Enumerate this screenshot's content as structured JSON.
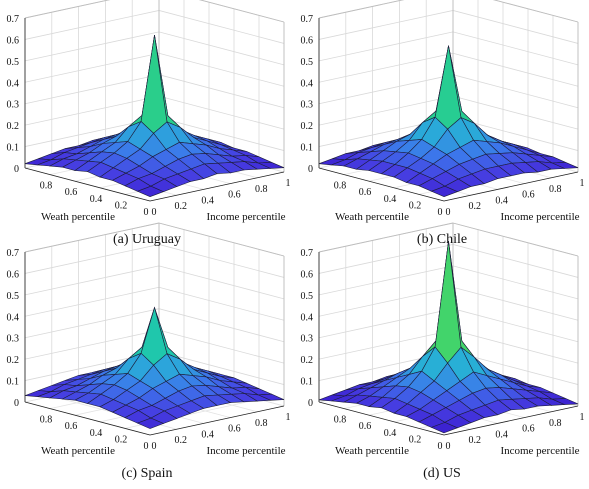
{
  "chart_data": [
    {
      "type": "surface3d",
      "caption": "(a) Uruguay",
      "xlabel": "Income percentile",
      "ylabel": "Weath percentile",
      "xticks": [
        "0",
        "0.2",
        "0.4",
        "0.6",
        "0.8",
        "1"
      ],
      "yticks": [
        "0",
        "0.2",
        "0.4",
        "0.6",
        "0.8"
      ],
      "zticks": [
        "0",
        "0.1",
        "0.2",
        "0.3",
        "0.4",
        "0.5",
        "0.6",
        "0.7"
      ],
      "zlim": [
        0,
        0.7
      ],
      "grid": true,
      "peak": 0.63,
      "z": [
        [
          0.02,
          0.03,
          0.04,
          0.05,
          0.05,
          0.06,
          0.05,
          0.05,
          0.04,
          0.03,
          0.02
        ],
        [
          0.03,
          0.04,
          0.06,
          0.07,
          0.08,
          0.09,
          0.08,
          0.07,
          0.06,
          0.04,
          0.03
        ],
        [
          0.04,
          0.06,
          0.07,
          0.09,
          0.11,
          0.12,
          0.11,
          0.09,
          0.07,
          0.06,
          0.04
        ],
        [
          0.05,
          0.07,
          0.09,
          0.12,
          0.14,
          0.16,
          0.14,
          0.12,
          0.09,
          0.07,
          0.05
        ],
        [
          0.05,
          0.08,
          0.11,
          0.14,
          0.2,
          0.24,
          0.2,
          0.14,
          0.11,
          0.08,
          0.05
        ],
        [
          0.06,
          0.09,
          0.12,
          0.16,
          0.24,
          0.63,
          0.24,
          0.16,
          0.12,
          0.09,
          0.06
        ],
        [
          0.05,
          0.08,
          0.11,
          0.14,
          0.2,
          0.24,
          0.2,
          0.14,
          0.11,
          0.08,
          0.05
        ],
        [
          0.05,
          0.07,
          0.09,
          0.12,
          0.14,
          0.16,
          0.14,
          0.12,
          0.09,
          0.07,
          0.05
        ],
        [
          0.04,
          0.06,
          0.07,
          0.09,
          0.11,
          0.12,
          0.11,
          0.09,
          0.07,
          0.06,
          0.04
        ],
        [
          0.03,
          0.04,
          0.06,
          0.07,
          0.08,
          0.09,
          0.08,
          0.07,
          0.06,
          0.04,
          0.03
        ],
        [
          0.02,
          0.03,
          0.04,
          0.05,
          0.05,
          0.06,
          0.05,
          0.05,
          0.04,
          0.03,
          0.02
        ]
      ]
    },
    {
      "type": "surface3d",
      "caption": "(b) Chile",
      "xlabel": "Income percentile",
      "ylabel": "Weath percentile",
      "xticks": [
        "0",
        "0.2",
        "0.4",
        "0.6",
        "0.8",
        "1"
      ],
      "yticks": [
        "0",
        "0.2",
        "0.4",
        "0.6",
        "0.8"
      ],
      "zticks": [
        "0",
        "0.1",
        "0.2",
        "0.3",
        "0.4",
        "0.5",
        "0.6",
        "0.7"
      ],
      "zlim": [
        0,
        0.7
      ],
      "grid": true,
      "peak": 0.58,
      "z": [
        [
          0.02,
          0.03,
          0.04,
          0.04,
          0.05,
          0.05,
          0.05,
          0.04,
          0.04,
          0.03,
          0.02
        ],
        [
          0.03,
          0.04,
          0.06,
          0.07,
          0.08,
          0.08,
          0.08,
          0.07,
          0.06,
          0.04,
          0.03
        ],
        [
          0.04,
          0.06,
          0.08,
          0.1,
          0.11,
          0.12,
          0.11,
          0.1,
          0.08,
          0.06,
          0.04
        ],
        [
          0.04,
          0.07,
          0.1,
          0.13,
          0.15,
          0.17,
          0.15,
          0.13,
          0.1,
          0.07,
          0.04
        ],
        [
          0.05,
          0.08,
          0.11,
          0.15,
          0.22,
          0.26,
          0.22,
          0.15,
          0.11,
          0.08,
          0.05
        ],
        [
          0.05,
          0.08,
          0.12,
          0.17,
          0.26,
          0.58,
          0.26,
          0.17,
          0.12,
          0.08,
          0.05
        ],
        [
          0.05,
          0.08,
          0.11,
          0.15,
          0.22,
          0.26,
          0.22,
          0.15,
          0.11,
          0.08,
          0.05
        ],
        [
          0.04,
          0.07,
          0.1,
          0.13,
          0.15,
          0.17,
          0.15,
          0.13,
          0.1,
          0.07,
          0.04
        ],
        [
          0.04,
          0.06,
          0.08,
          0.1,
          0.11,
          0.12,
          0.11,
          0.1,
          0.08,
          0.06,
          0.04
        ],
        [
          0.03,
          0.04,
          0.06,
          0.07,
          0.08,
          0.08,
          0.08,
          0.07,
          0.06,
          0.04,
          0.03
        ],
        [
          0.02,
          0.03,
          0.04,
          0.04,
          0.05,
          0.05,
          0.05,
          0.04,
          0.04,
          0.03,
          0.02
        ]
      ]
    },
    {
      "type": "surface3d",
      "caption": "(c) Spain",
      "xlabel": "Income percentile",
      "ylabel": "Weath percentile",
      "xticks": [
        "0",
        "0.2",
        "0.4",
        "0.6",
        "0.8",
        "1"
      ],
      "yticks": [
        "0",
        "0.2",
        "0.4",
        "0.6",
        "0.8"
      ],
      "zticks": [
        "0",
        "0.1",
        "0.2",
        "0.3",
        "0.4",
        "0.5",
        "0.6",
        "0.7"
      ],
      "zlim": [
        0,
        0.7
      ],
      "grid": true,
      "peak": 0.45,
      "z": [
        [
          0.03,
          0.04,
          0.05,
          0.06,
          0.07,
          0.07,
          0.07,
          0.06,
          0.05,
          0.04,
          0.03
        ],
        [
          0.04,
          0.05,
          0.07,
          0.08,
          0.09,
          0.1,
          0.09,
          0.08,
          0.07,
          0.05,
          0.04
        ],
        [
          0.05,
          0.07,
          0.08,
          0.1,
          0.12,
          0.13,
          0.12,
          0.1,
          0.08,
          0.07,
          0.05
        ],
        [
          0.06,
          0.08,
          0.1,
          0.13,
          0.15,
          0.17,
          0.15,
          0.13,
          0.1,
          0.08,
          0.06
        ],
        [
          0.07,
          0.09,
          0.12,
          0.15,
          0.21,
          0.25,
          0.21,
          0.15,
          0.12,
          0.09,
          0.07
        ],
        [
          0.07,
          0.1,
          0.13,
          0.17,
          0.25,
          0.45,
          0.25,
          0.17,
          0.13,
          0.1,
          0.07
        ],
        [
          0.07,
          0.09,
          0.12,
          0.15,
          0.21,
          0.25,
          0.21,
          0.15,
          0.12,
          0.09,
          0.07
        ],
        [
          0.06,
          0.08,
          0.1,
          0.13,
          0.15,
          0.17,
          0.15,
          0.13,
          0.1,
          0.08,
          0.06
        ],
        [
          0.05,
          0.07,
          0.08,
          0.1,
          0.12,
          0.13,
          0.12,
          0.1,
          0.08,
          0.07,
          0.05
        ],
        [
          0.04,
          0.05,
          0.07,
          0.08,
          0.09,
          0.1,
          0.09,
          0.08,
          0.07,
          0.05,
          0.04
        ],
        [
          0.03,
          0.04,
          0.05,
          0.06,
          0.07,
          0.07,
          0.07,
          0.06,
          0.05,
          0.04,
          0.03
        ]
      ]
    },
    {
      "type": "surface3d",
      "caption": "(d) US",
      "xlabel": "Income percentile",
      "ylabel": "Weath percentile",
      "xticks": [
        "0",
        "0.2",
        "0.4",
        "0.6",
        "0.8",
        "1"
      ],
      "yticks": [
        "0",
        "0.2",
        "0.4",
        "0.6",
        "0.8"
      ],
      "zticks": [
        "0",
        "0.1",
        "0.2",
        "0.3",
        "0.4",
        "0.5",
        "0.6",
        "0.7"
      ],
      "zlim": [
        0,
        0.7
      ],
      "grid": true,
      "peak": 0.76,
      "z": [
        [
          0.01,
          0.02,
          0.03,
          0.04,
          0.04,
          0.05,
          0.04,
          0.04,
          0.03,
          0.02,
          0.01
        ],
        [
          0.02,
          0.03,
          0.05,
          0.06,
          0.07,
          0.08,
          0.07,
          0.06,
          0.05,
          0.03,
          0.02
        ],
        [
          0.03,
          0.05,
          0.07,
          0.09,
          0.11,
          0.12,
          0.11,
          0.09,
          0.07,
          0.05,
          0.03
        ],
        [
          0.04,
          0.06,
          0.09,
          0.12,
          0.15,
          0.18,
          0.15,
          0.12,
          0.09,
          0.06,
          0.04
        ],
        [
          0.04,
          0.07,
          0.11,
          0.15,
          0.22,
          0.28,
          0.22,
          0.15,
          0.11,
          0.07,
          0.04
        ],
        [
          0.05,
          0.08,
          0.12,
          0.18,
          0.28,
          0.76,
          0.28,
          0.18,
          0.12,
          0.08,
          0.05
        ],
        [
          0.04,
          0.07,
          0.11,
          0.15,
          0.22,
          0.28,
          0.22,
          0.15,
          0.11,
          0.07,
          0.04
        ],
        [
          0.04,
          0.06,
          0.09,
          0.12,
          0.15,
          0.18,
          0.15,
          0.12,
          0.09,
          0.06,
          0.04
        ],
        [
          0.03,
          0.05,
          0.07,
          0.09,
          0.11,
          0.12,
          0.11,
          0.09,
          0.07,
          0.05,
          0.03
        ],
        [
          0.02,
          0.03,
          0.05,
          0.06,
          0.07,
          0.08,
          0.07,
          0.06,
          0.05,
          0.03,
          0.02
        ],
        [
          0.01,
          0.02,
          0.03,
          0.04,
          0.04,
          0.05,
          0.04,
          0.04,
          0.03,
          0.02,
          0.01
        ]
      ]
    }
  ]
}
